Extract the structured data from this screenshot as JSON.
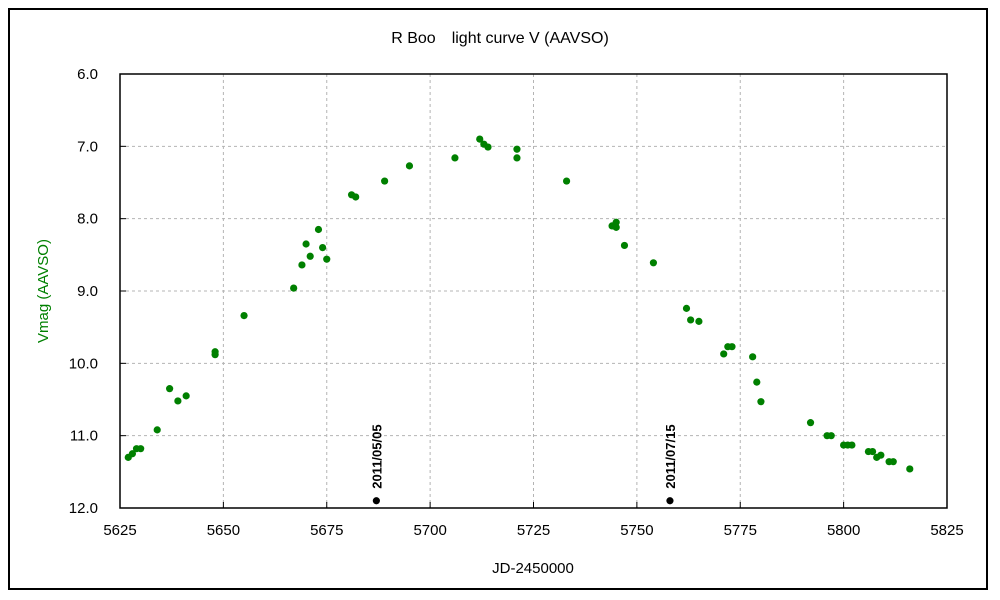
{
  "chart_data": {
    "type": "scatter",
    "title": "R Boo　light curve V (AAVSO)",
    "xlabel": "JD-2450000",
    "ylabel": "Vmag (AAVSO)",
    "xlim": [
      5625,
      5825
    ],
    "ylim": [
      6.0,
      12.0
    ],
    "y_inverted": true,
    "grid": true,
    "x_ticks": [
      "5625",
      "5650",
      "5675",
      "5700",
      "5725",
      "5750",
      "5775",
      "5800",
      "5825"
    ],
    "y_ticks": [
      "6.0",
      "7.0",
      "8.0",
      "9.0",
      "10.0",
      "11.0",
      "12.0"
    ],
    "series": [
      {
        "color": "#008000",
        "points": [
          [
            5627,
            11.3
          ],
          [
            5628,
            11.25
          ],
          [
            5629,
            11.18
          ],
          [
            5630,
            11.18
          ],
          [
            5634,
            10.92
          ],
          [
            5637,
            10.35
          ],
          [
            5639,
            10.52
          ],
          [
            5641,
            10.45
          ],
          [
            5648,
            9.88
          ],
          [
            5648,
            9.84
          ],
          [
            5655,
            9.34
          ],
          [
            5667,
            8.96
          ],
          [
            5669,
            8.64
          ],
          [
            5670,
            8.35
          ],
          [
            5671,
            8.52
          ],
          [
            5673,
            8.15
          ],
          [
            5674,
            8.4
          ],
          [
            5675,
            8.56
          ],
          [
            5681,
            7.67
          ],
          [
            5682,
            7.7
          ],
          [
            5689,
            7.48
          ],
          [
            5695,
            7.27
          ],
          [
            5706,
            7.16
          ],
          [
            5712,
            6.9
          ],
          [
            5713,
            6.97
          ],
          [
            5714,
            7.01
          ],
          [
            5721,
            7.04
          ],
          [
            5721,
            7.16
          ],
          [
            5733,
            7.48
          ],
          [
            5744,
            8.1
          ],
          [
            5745,
            8.05
          ],
          [
            5745,
            8.12
          ],
          [
            5747,
            8.37
          ],
          [
            5754,
            8.61
          ],
          [
            5762,
            9.24
          ],
          [
            5763,
            9.4
          ],
          [
            5765,
            9.42
          ],
          [
            5771,
            9.87
          ],
          [
            5772,
            9.77
          ],
          [
            5773,
            9.77
          ],
          [
            5778,
            9.91
          ],
          [
            5779,
            10.26
          ],
          [
            5780,
            10.53
          ],
          [
            5792,
            10.82
          ],
          [
            5796,
            11.0
          ],
          [
            5797,
            11.0
          ],
          [
            5800,
            11.13
          ],
          [
            5801,
            11.13
          ],
          [
            5802,
            11.13
          ],
          [
            5806,
            11.22
          ],
          [
            5807,
            11.22
          ],
          [
            5808,
            11.3
          ],
          [
            5809,
            11.27
          ],
          [
            5811,
            11.36
          ],
          [
            5812,
            11.36
          ],
          [
            5816,
            11.46
          ]
        ]
      }
    ],
    "annotations": [
      {
        "text": "2011/05/05",
        "x": 5687,
        "y": 11.9,
        "marker_color": "#000000"
      },
      {
        "text": "2011/07/15",
        "x": 5758,
        "y": 11.9,
        "marker_color": "#000000"
      }
    ],
    "colors": {
      "points": "#008000",
      "grid": "#b4b4b4",
      "ylabel": "#008000",
      "ytick": "#000000"
    }
  }
}
